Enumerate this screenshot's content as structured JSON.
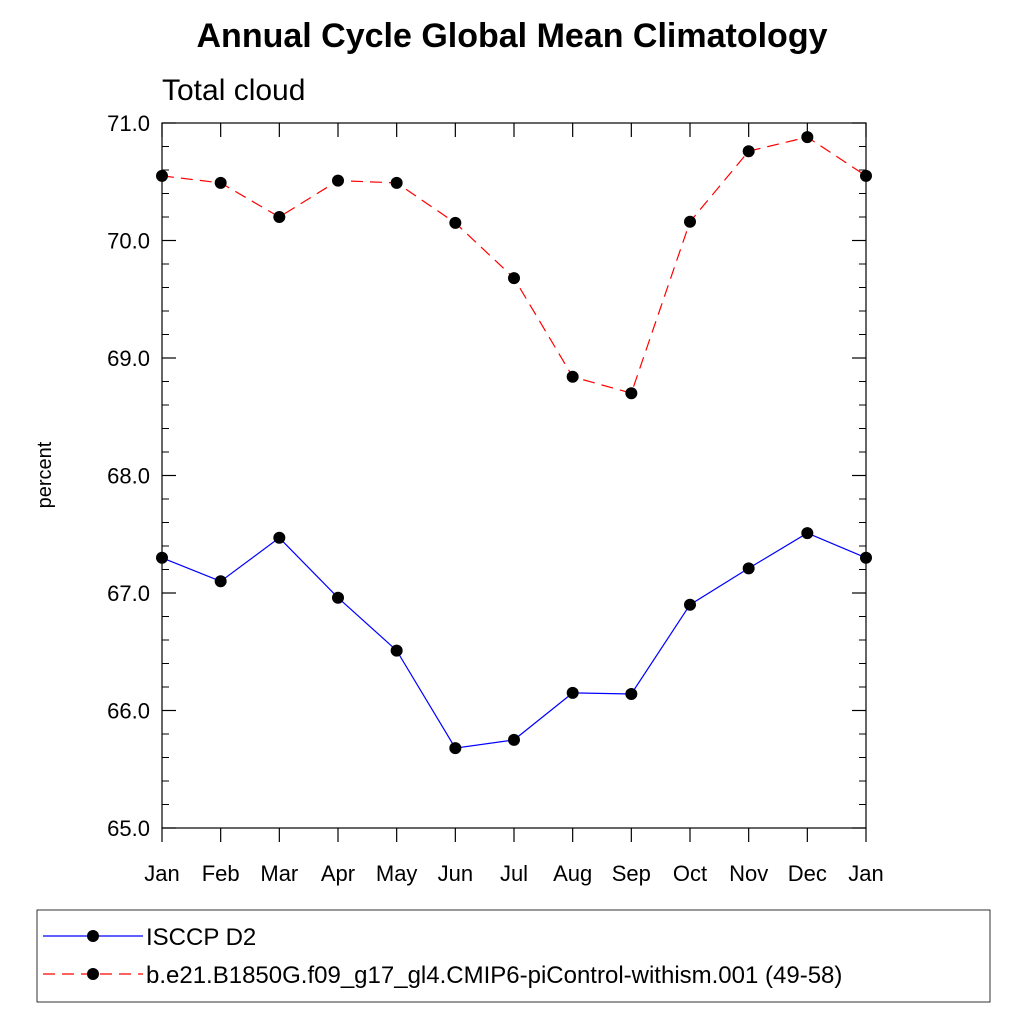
{
  "chart_data": {
    "type": "line",
    "title": "Annual Cycle Global Mean Climatology",
    "subtitle": "Total cloud",
    "ylabel": "percent",
    "xlabel": "",
    "categories": [
      "Jan",
      "Feb",
      "Mar",
      "Apr",
      "May",
      "Jun",
      "Jul",
      "Aug",
      "Sep",
      "Oct",
      "Nov",
      "Dec",
      "Jan"
    ],
    "ylim": [
      65.0,
      71.0
    ],
    "yticks": [
      "65.0",
      "66.0",
      "67.0",
      "68.0",
      "69.0",
      "70.0",
      "71.0"
    ],
    "grid": false,
    "legend_position": "bottom",
    "series": [
      {
        "name": "ISCCP D2",
        "color": "#0000ff",
        "dash": "solid",
        "values": [
          67.3,
          67.1,
          67.47,
          66.96,
          66.51,
          65.68,
          65.75,
          66.15,
          66.14,
          66.9,
          67.21,
          67.51,
          67.3
        ]
      },
      {
        "name": "b.e21.B1850G.f09_g17_gl4.CMIP6-piControl-withism.001 (49-58)",
        "color": "#ff0000",
        "dash": "dashed",
        "values": [
          70.55,
          70.49,
          70.2,
          70.51,
          70.49,
          70.15,
          69.68,
          68.84,
          68.7,
          70.16,
          70.76,
          70.88,
          70.55
        ]
      }
    ]
  }
}
